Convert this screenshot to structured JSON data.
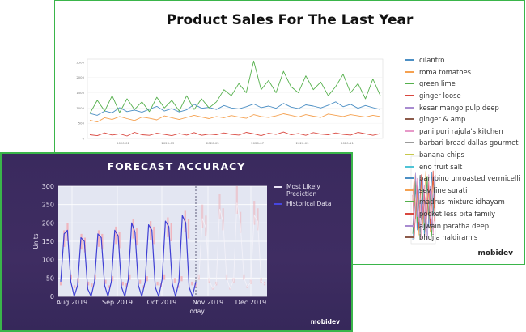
{
  "back_chart": {
    "title": "Product Sales For The Last Year",
    "brand": "mobidev",
    "legend": [
      {
        "label": "cilantro",
        "color": "#4c8fc4"
      },
      {
        "label": "roma tomatoes",
        "color": "#f5a150"
      },
      {
        "label": "green lime",
        "color": "#55b04c"
      },
      {
        "label": "ginger loose",
        "color": "#d9473f"
      },
      {
        "label": "kesar mango pulp deep",
        "color": "#a88bd0"
      },
      {
        "label": "ginger & amp",
        "color": "#8c5a4a"
      },
      {
        "label": "pani puri rajula's kitchen",
        "color": "#e79ac9"
      },
      {
        "label": "barbari bread dallas gourmet",
        "color": "#9a9a9a"
      },
      {
        "label": "banana chips",
        "color": "#c7c84a"
      },
      {
        "label": "eno fruit salt",
        "color": "#4fc4d6"
      },
      {
        "label": "bambino unroasted vermicelli",
        "color": "#4c8fc4"
      },
      {
        "label": "sev fine surati",
        "color": "#f5a150"
      },
      {
        "label": "madrus mixture idhayam",
        "color": "#55b04c"
      },
      {
        "label": "pocket less pita family",
        "color": "#d9473f"
      },
      {
        "label": "ajwain paratha deep",
        "color": "#a88bd0"
      },
      {
        "label": "bhujia haldiram's",
        "color": "#8c5a4a"
      }
    ]
  },
  "chart_data": [
    {
      "type": "line",
      "title": "Product Sales For The Last Year",
      "y_ticks": [
        0,
        500,
        1000,
        1500,
        2000,
        2500
      ],
      "ylim": [
        0,
        2600
      ],
      "x_ticks": [
        "2020-01",
        "2020-03",
        "2020-05",
        "2020-07",
        "2020-09",
        "2020-11"
      ],
      "series": [
        {
          "name": "cilantro",
          "color": "#4c8fc4",
          "values": [
            820,
            760,
            900,
            840,
            1010,
            880,
            930,
            860,
            960,
            1050,
            900,
            980,
            870,
            940,
            1120,
            990,
            1020,
            950,
            1080,
            1000,
            970,
            1040,
            1130,
            1010,
            1060,
            990,
            1150,
            1030,
            980,
            1100,
            1060,
            1000,
            1090,
            1200,
            1040,
            1120,
            990,
            1080,
            1010,
            950
          ]
        },
        {
          "name": "roma tomatoes",
          "color": "#f5a150",
          "values": [
            600,
            540,
            680,
            620,
            720,
            650,
            590,
            700,
            660,
            610,
            740,
            680,
            620,
            690,
            760,
            700,
            650,
            720,
            680,
            750,
            700,
            660,
            780,
            720,
            690,
            740,
            810,
            760,
            700,
            780,
            730,
            690,
            800,
            760,
            720,
            780,
            740,
            700,
            760,
            720
          ]
        },
        {
          "name": "green lime",
          "color": "#55b04c",
          "values": [
            820,
            1250,
            900,
            1400,
            850,
            1300,
            950,
            1200,
            880,
            1350,
            1000,
            1250,
            900,
            1400,
            950,
            1300,
            1000,
            1200,
            1600,
            1400,
            1800,
            1500,
            2540,
            1600,
            1900,
            1500,
            2200,
            1700,
            1500,
            2050,
            1600,
            1850,
            1400,
            1700,
            2100,
            1500,
            1800,
            1300,
            1950,
            1400
          ]
        },
        {
          "name": "ginger loose",
          "color": "#d9473f",
          "values": [
            120,
            90,
            180,
            110,
            150,
            80,
            200,
            120,
            100,
            170,
            130,
            90,
            160,
            110,
            190,
            100,
            140,
            120,
            180,
            130,
            110,
            200,
            150,
            90,
            170,
            130,
            210,
            120,
            160,
            100,
            190,
            140,
            120,
            180,
            130,
            110,
            200,
            150,
            100,
            160
          ]
        }
      ]
    },
    {
      "type": "line",
      "title": "FORECAST ACCURACY",
      "xlabel": "Today",
      "ylabel": "Units",
      "ylim": [
        0,
        300
      ],
      "y_ticks": [
        0,
        50,
        100,
        150,
        200,
        250,
        300
      ],
      "x_ticks": [
        "Aug 2019",
        "Sep 2019",
        "Oct 2019",
        "Nov 2019",
        "Dec 2019"
      ],
      "legend_position": "right",
      "series": [
        {
          "name": "Most Likely Prediction",
          "color": "#f2a9b0",
          "values": [
            40,
            180,
            200,
            60,
            30,
            50,
            170,
            160,
            40,
            35,
            60,
            180,
            170,
            45,
            30,
            55,
            190,
            175,
            40,
            35,
            60,
            210,
            185,
            45,
            30,
            55,
            205,
            190,
            40,
            35,
            60,
            215,
            200,
            50,
            30,
            55,
            235,
            210,
            40,
            35,
            60,
            250,
            220,
            50,
            25,
            40,
            280,
            240,
            60,
            25,
            50,
            300,
            230,
            60,
            30,
            45,
            260,
            240,
            50,
            40
          ]
        },
        {
          "name": "Historical Data",
          "color": "#3f3fd4",
          "values": [
            40,
            170,
            180,
            40,
            0,
            30,
            160,
            150,
            20,
            0,
            40,
            170,
            160,
            30,
            0,
            40,
            180,
            165,
            25,
            0,
            45,
            200,
            175,
            30,
            0,
            40,
            195,
            180,
            25,
            0,
            45,
            205,
            190,
            35,
            0,
            40,
            220,
            200,
            25,
            0,
            40
          ]
        }
      ]
    }
  ],
  "front_chart": {
    "title": "FORECAST ACCURACY",
    "brand": "mobidev",
    "legend": [
      {
        "label": "Most Likely Prediction",
        "color": "#e9e3f4"
      },
      {
        "label": "Historical Data",
        "color": "#4646e0"
      }
    ]
  }
}
